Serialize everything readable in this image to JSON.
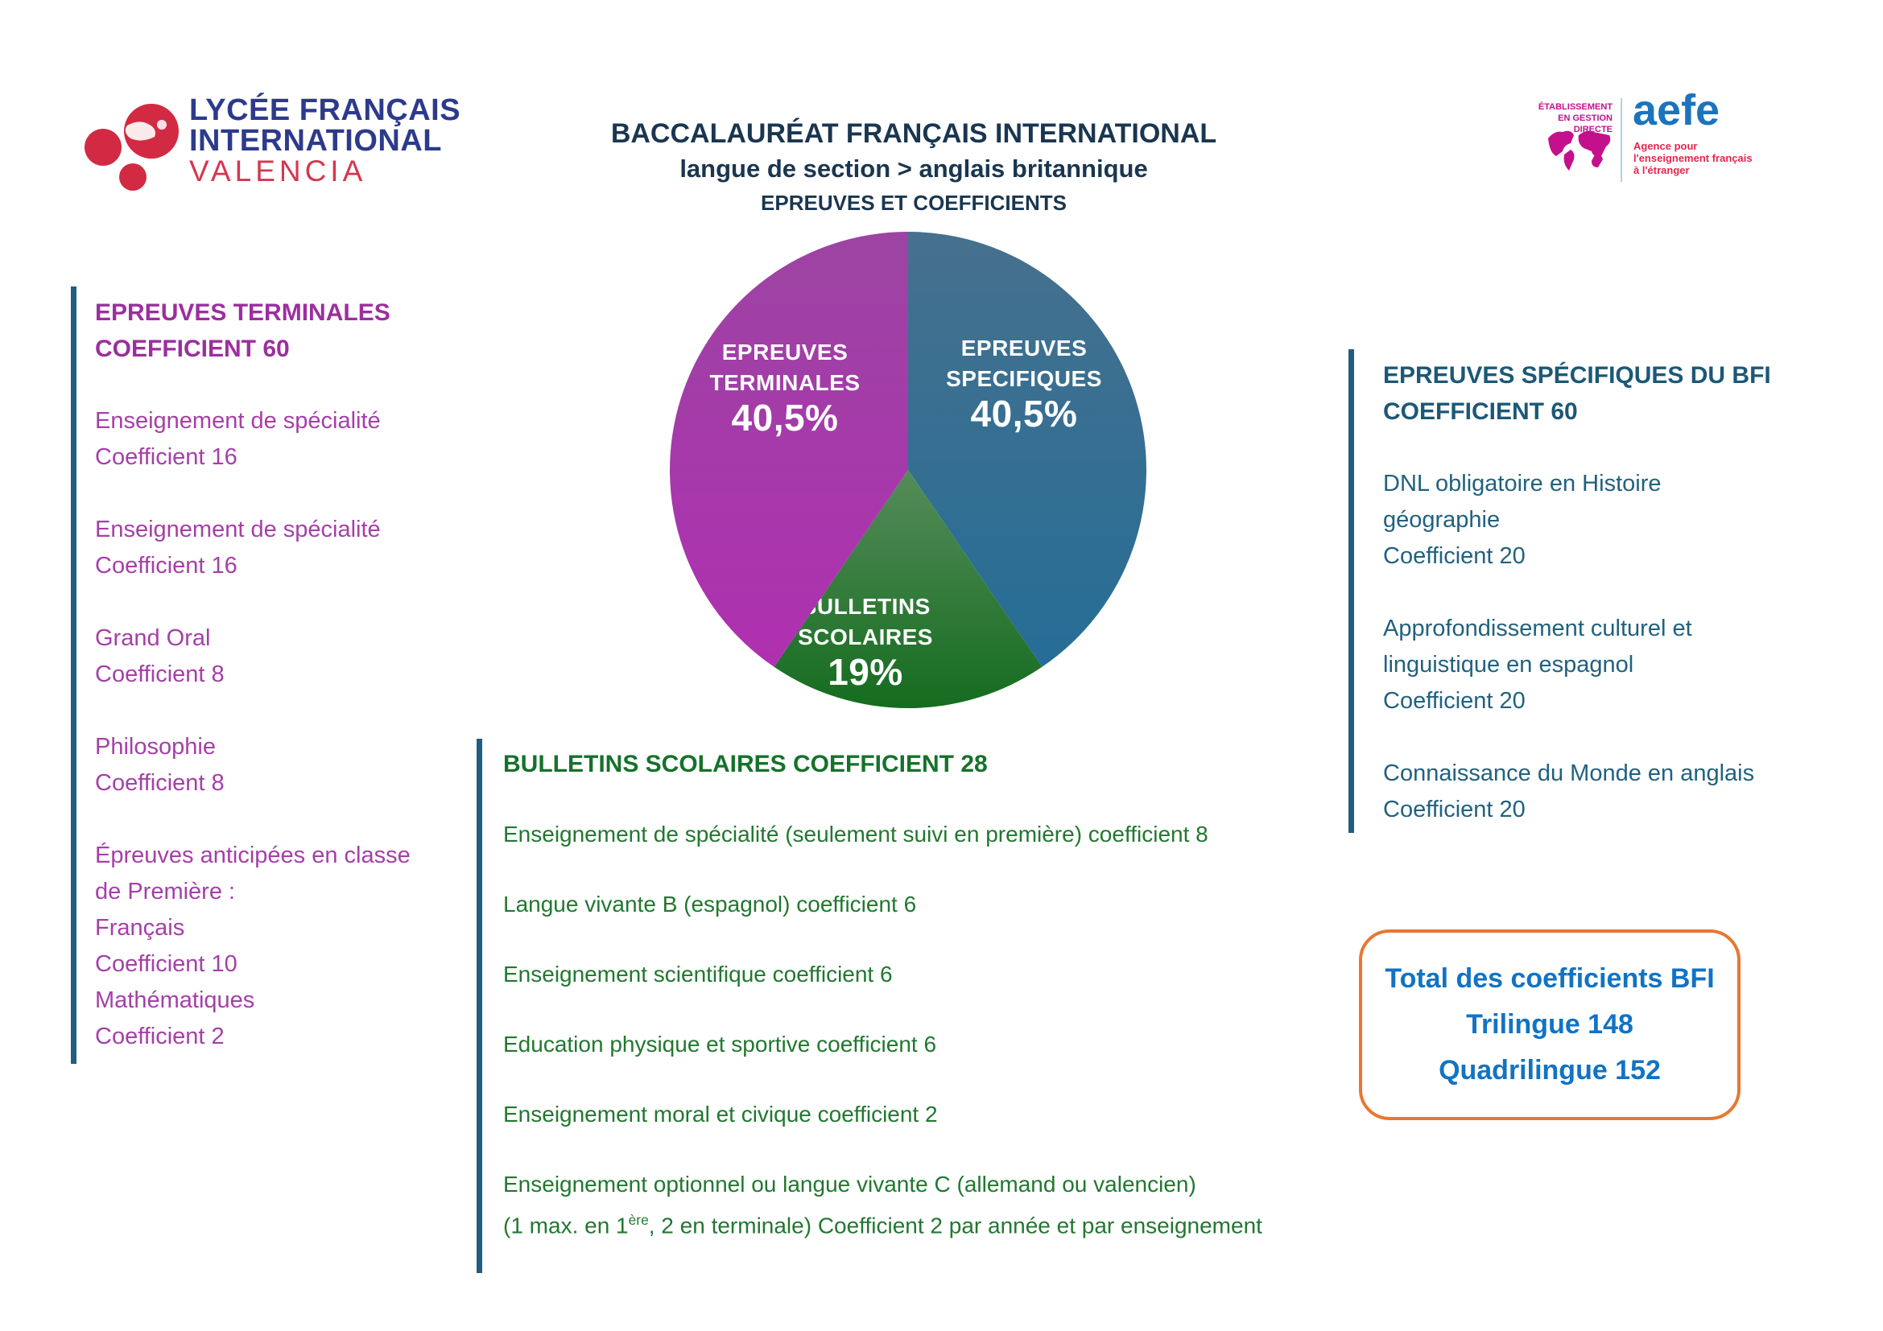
{
  "school_logo": {
    "line1": "LYCÉE FRANÇAIS",
    "line2": "INTERNATIONAL",
    "city": "VALENCIA"
  },
  "header": {
    "title": "BACCALAURÉAT FRANÇAIS INTERNATIONAL",
    "subtitle": "langue de section > anglais britannique",
    "subsubtitle": "EPREUVES ET COEFFICIENTS"
  },
  "aefe_logo": {
    "tag_line1": "ÉTABLISSEMENT",
    "tag_line2": "EN GESTION DIRECTE",
    "name": "aefe",
    "desc_line1": "Agence pour",
    "desc_line2": "l'enseignement français",
    "desc_line3": "à l'étranger"
  },
  "chart_data": {
    "type": "pie",
    "title": "EPREUVES ET COEFFICIENTS",
    "start_angle_deg": -90,
    "direction": "clockwise",
    "categories": [
      "EPREUVES SPECIFIQUES",
      "BULLETINS SCOLAIRES",
      "EPREUVES TERMINALES"
    ],
    "values": [
      40.5,
      19,
      40.5
    ],
    "slices": [
      {
        "id": "epreuves-specifiques",
        "label_lines": [
          "EPREUVES",
          "SPECIFIQUES"
        ],
        "value": 40.5,
        "pct_label": "40,5%",
        "color_top": "#46708E",
        "color_bottom": "#256E96",
        "label_pos": [
          454,
          164
        ]
      },
      {
        "id": "bulletins-scolaires",
        "label_lines": [
          "BULLETINS",
          "SCOLAIRES"
        ],
        "value": 19,
        "pct_label": "19%",
        "color_top": "#558C5A",
        "color_bottom": "#156C1F",
        "label_pos": [
          257,
          485
        ]
      },
      {
        "id": "epreuves-terminales",
        "label_lines": [
          "EPREUVES",
          "TERMINALES"
        ],
        "value": 40.5,
        "pct_label": "40,5%",
        "color_top": "#9C44A3",
        "color_bottom": "#AF30B0",
        "label_pos": [
          157,
          169
        ]
      }
    ]
  },
  "sections": {
    "terminales": {
      "header_line1": "EPREUVES TERMINALES",
      "header_line2": "COEFFICIENT 60",
      "items": [
        {
          "lines": [
            "Enseignement de spécialité",
            "Coefficient 16"
          ]
        },
        {
          "lines": [
            "Enseignement de spécialité",
            "Coefficient 16"
          ]
        },
        {
          "lines": [
            "Grand Oral",
            "Coefficient 8"
          ]
        },
        {
          "lines": [
            "Philosophie",
            "Coefficient 8"
          ]
        },
        {
          "lines": [
            "Épreuves anticipées en classe",
            "de Première :",
            "Français",
            "Coefficient 10",
            "Mathématiques",
            "Coefficient 2"
          ]
        }
      ]
    },
    "specifiques": {
      "header_line1": "EPREUVES SPÉCIFIQUES DU BFI",
      "header_line2": "COEFFICIENT 60",
      "items": [
        {
          "lines": [
            "DNL obligatoire en Histoire",
            "géographie",
            "Coefficient 20"
          ]
        },
        {
          "lines": [
            "Approfondissement culturel et",
            "linguistique en espagnol",
            "Coefficient 20"
          ]
        },
        {
          "lines": [
            "Connaissance du Monde en anglais",
            "Coefficient 20"
          ]
        }
      ]
    },
    "bulletins": {
      "header": "BULLETINS SCOLAIRES COEFFICIENT 28",
      "items": [
        {
          "lines": [
            "Enseignement de spécialité (seulement suivi en première) coefficient 8"
          ]
        },
        {
          "lines": [
            "Langue vivante B (espagnol) coefficient 6"
          ]
        },
        {
          "lines": [
            "Enseignement scientifique coefficient 6"
          ]
        },
        {
          "lines": [
            "Education physique et sportive coefficient 6"
          ]
        },
        {
          "lines": [
            "Enseignement moral et civique coefficient 2"
          ]
        },
        {
          "lines": [
            "Enseignement optionnel ou langue vivante C (allemand ou valencien)",
            {
              "parts": [
                {
                  "t": "(1 max. en 1"
                },
                {
                  "t": "ère",
                  "sup": true
                },
                {
                  "t": ", 2 en terminale) Coefficient 2 par année et par enseignement"
                }
              ]
            }
          ]
        }
      ]
    },
    "total": {
      "line1": "Total des coefficients BFI",
      "line2": "Trilingue 148",
      "line3": "Quadrilingue 152"
    }
  },
  "colors": {
    "title_navy": "#1A3650",
    "bar_teal": "#1E5F80",
    "terminales_purple": "#A53FA8",
    "specifiques_blue": "#21617F",
    "bulletins_green": "#21782F",
    "total_blue": "#1173C4",
    "total_border_orange": "#E87731",
    "logo_navy": "#2D3A8C",
    "logo_red": "#D4374F",
    "aefe_blue": "#1B74BC",
    "aefe_magenta": "#C4108C",
    "aefe_red": "#E3274F"
  }
}
